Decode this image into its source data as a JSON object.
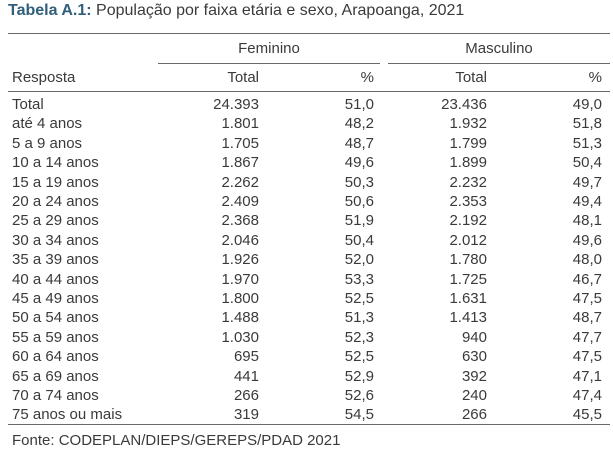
{
  "title": {
    "label": "Tabela A.1:",
    "text": "População por faixa etária e sexo, Arapoanga, 2021"
  },
  "header": {
    "group_female": "Feminino",
    "group_male": "Masculino",
    "col_response": "Resposta",
    "col_total_f": "Total",
    "col_pct_f": "%",
    "col_total_m": "Total",
    "col_pct_m": "%"
  },
  "rows": [
    {
      "label": "Total",
      "f_total": "24.393",
      "f_pct": "51,0",
      "m_total": "23.436",
      "m_pct": "49,0"
    },
    {
      "label": "até 4 anos",
      "f_total": "1.801",
      "f_pct": "48,2",
      "m_total": "1.932",
      "m_pct": "51,8"
    },
    {
      "label": "5 a 9 anos",
      "f_total": "1.705",
      "f_pct": "48,7",
      "m_total": "1.799",
      "m_pct": "51,3"
    },
    {
      "label": "10 a 14 anos",
      "f_total": "1.867",
      "f_pct": "49,6",
      "m_total": "1.899",
      "m_pct": "50,4"
    },
    {
      "label": "15 a 19 anos",
      "f_total": "2.262",
      "f_pct": "50,3",
      "m_total": "2.232",
      "m_pct": "49,7"
    },
    {
      "label": "20 a 24 anos",
      "f_total": "2.409",
      "f_pct": "50,6",
      "m_total": "2.353",
      "m_pct": "49,4"
    },
    {
      "label": "25 a 29 anos",
      "f_total": "2.368",
      "f_pct": "51,9",
      "m_total": "2.192",
      "m_pct": "48,1"
    },
    {
      "label": "30 a 34 anos",
      "f_total": "2.046",
      "f_pct": "50,4",
      "m_total": "2.012",
      "m_pct": "49,6"
    },
    {
      "label": "35 a 39 anos",
      "f_total": "1.926",
      "f_pct": "52,0",
      "m_total": "1.780",
      "m_pct": "48,0"
    },
    {
      "label": "40 a 44 anos",
      "f_total": "1.970",
      "f_pct": "53,3",
      "m_total": "1.725",
      "m_pct": "46,7"
    },
    {
      "label": "45 a 49 anos",
      "f_total": "1.800",
      "f_pct": "52,5",
      "m_total": "1.631",
      "m_pct": "47,5"
    },
    {
      "label": "50 a 54 anos",
      "f_total": "1.488",
      "f_pct": "51,3",
      "m_total": "1.413",
      "m_pct": "48,7"
    },
    {
      "label": "55 a 59 anos",
      "f_total": "1.030",
      "f_pct": "52,3",
      "m_total": "940",
      "m_pct": "47,7"
    },
    {
      "label": "60 a 64 anos",
      "f_total": "695",
      "f_pct": "52,5",
      "m_total": "630",
      "m_pct": "47,5"
    },
    {
      "label": "65 a 69 anos",
      "f_total": "441",
      "f_pct": "52,9",
      "m_total": "392",
      "m_pct": "47,1"
    },
    {
      "label": "70 a 74 anos",
      "f_total": "266",
      "f_pct": "52,6",
      "m_total": "240",
      "m_pct": "47,4"
    },
    {
      "label": "75 anos ou mais",
      "f_total": "319",
      "f_pct": "54,5",
      "m_total": "266",
      "m_pct": "45,5"
    }
  ],
  "footer": "Fonte: CODEPLAN/DIEPS/GEREPS/PDAD 2021",
  "colors": {
    "title_label": "#2f5f7a",
    "text": "#3a3a3a",
    "rule": "#6a6a6a"
  }
}
